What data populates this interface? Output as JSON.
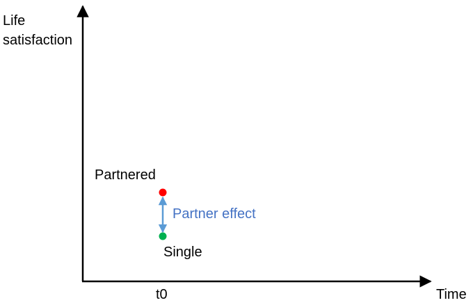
{
  "diagram": {
    "y_axis_label": "Life\nsatisfaction",
    "x_axis_label": "Time",
    "x_tick_label": "t0",
    "top_point_label": "Partnered",
    "bottom_point_label": "Single",
    "effect_label": "Partner effect",
    "colors": {
      "axis": "#000000",
      "partnered_point": "#ff0000",
      "single_point": "#00b050",
      "effect_arrow": "#5b9bd5",
      "effect_text": "#4472c4"
    },
    "icons": {
      "axis_arrowheads": "arrowhead-icon",
      "effect_arrow": "double-arrow-icon"
    }
  }
}
